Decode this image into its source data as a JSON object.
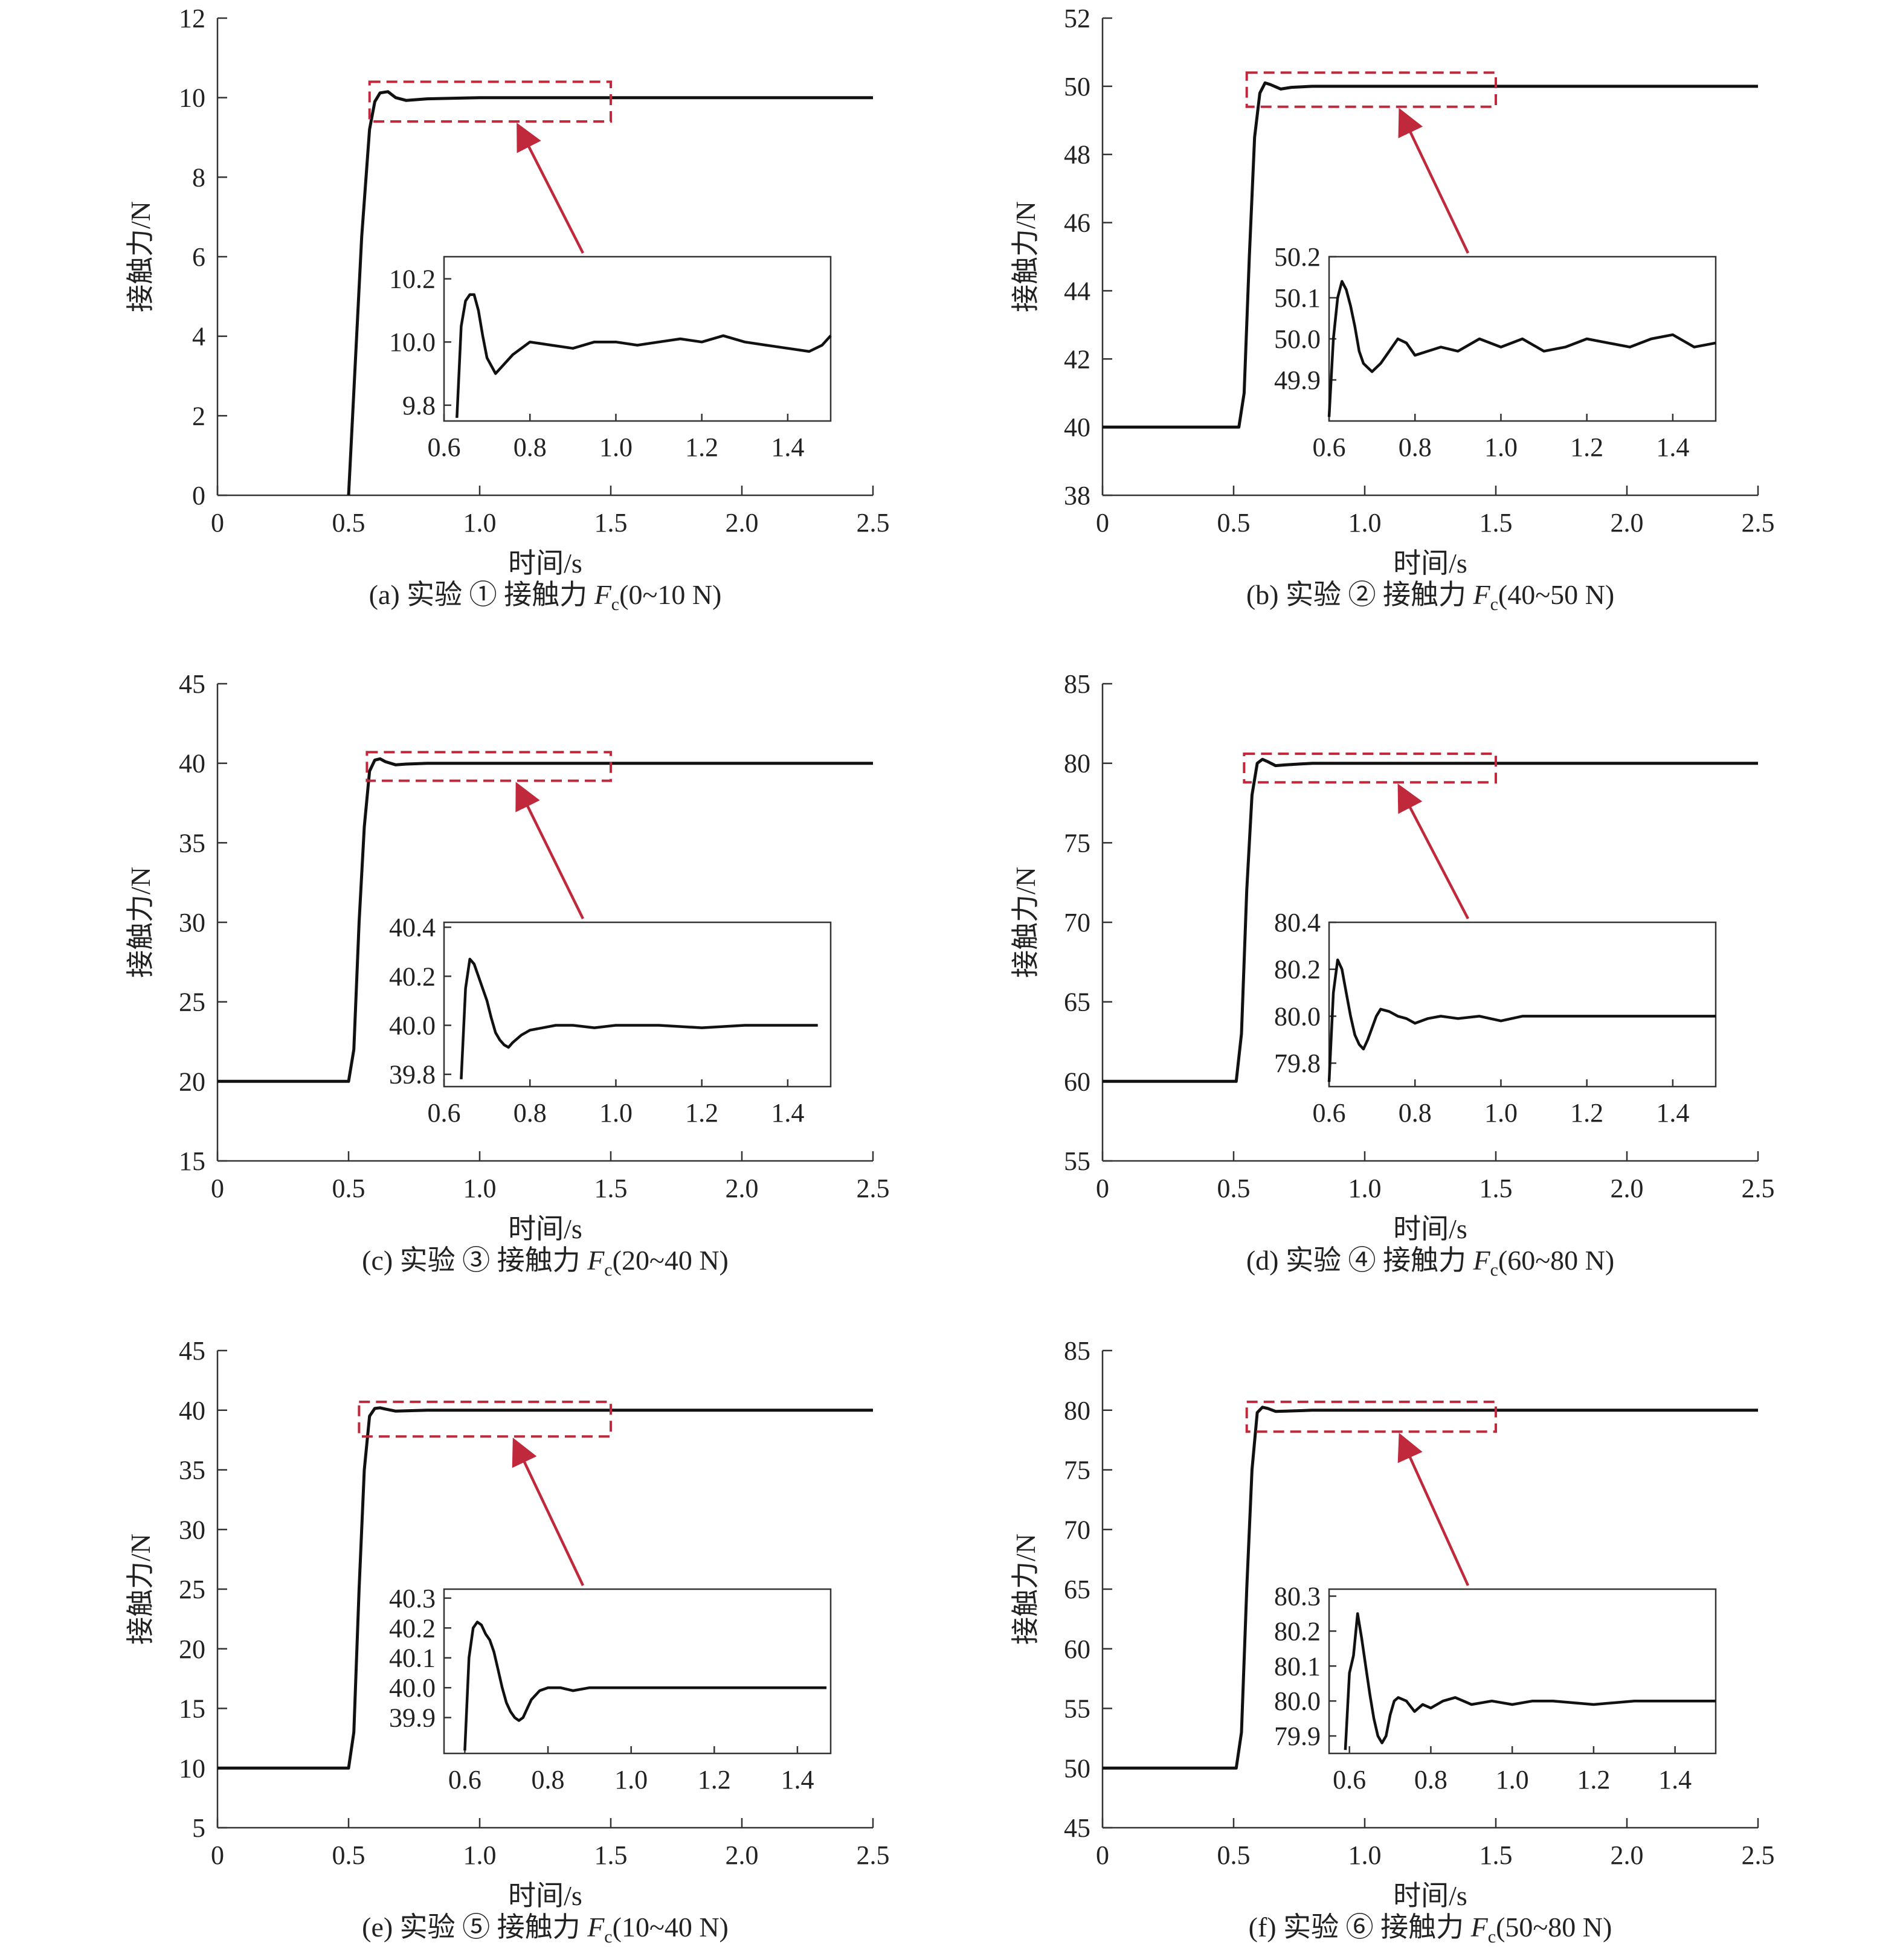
{
  "chart_data": [
    {
      "type": "line",
      "caption_prefix": "(a) 实验 ① 接触力 ",
      "caption_var": "F",
      "caption_sub": "c",
      "caption_range": "(0~10 N)",
      "xlabel": "时间/s",
      "ylabel": "接触力/N",
      "xlim": [
        0,
        2.5
      ],
      "ylim": [
        0,
        12
      ],
      "xticks": [
        "0",
        "0.5",
        "1.0",
        "1.5",
        "2.0",
        "2.5"
      ],
      "yticks": [
        "0",
        "2",
        "4",
        "6",
        "8",
        "10",
        "12"
      ],
      "series": [
        {
          "x": [
            0.5,
            0.55,
            0.58,
            0.6,
            0.62,
            0.65,
            0.68,
            0.72,
            0.8,
            1.0,
            1.5,
            2.0,
            2.5
          ],
          "y": [
            0,
            6.5,
            9.2,
            9.9,
            10.12,
            10.15,
            10.0,
            9.93,
            9.97,
            10.0,
            10.0,
            10.0,
            10.0
          ]
        }
      ],
      "highlight": {
        "x": [
          0.58,
          1.5
        ],
        "y": [
          9.4,
          10.4
        ]
      },
      "inset": {
        "xlim": [
          0.6,
          1.5
        ],
        "ylim": [
          9.75,
          10.27
        ],
        "xticks": [
          "0.6",
          "0.8",
          "1.0",
          "1.2",
          "1.4"
        ],
        "yticks": [
          "9.8",
          "10.0",
          "10.2"
        ],
        "series": {
          "x": [
            0.63,
            0.64,
            0.65,
            0.66,
            0.67,
            0.68,
            0.69,
            0.7,
            0.72,
            0.74,
            0.76,
            0.8,
            0.85,
            0.9,
            0.95,
            1.0,
            1.05,
            1.1,
            1.15,
            1.2,
            1.25,
            1.3,
            1.35,
            1.4,
            1.45,
            1.48,
            1.5
          ],
          "y": [
            9.76,
            10.05,
            10.13,
            10.15,
            10.15,
            10.1,
            10.02,
            9.95,
            9.9,
            9.93,
            9.96,
            10.0,
            9.99,
            9.98,
            10.0,
            10.0,
            9.99,
            10.0,
            10.01,
            10.0,
            10.02,
            10.0,
            9.99,
            9.98,
            9.97,
            9.99,
            10.02
          ]
        }
      }
    },
    {
      "type": "line",
      "caption_prefix": "(b) 实验 ② 接触力 ",
      "caption_var": "F",
      "caption_sub": "c",
      "caption_range": "(40~50 N)",
      "xlabel": "时间/s",
      "ylabel": "接触力/N",
      "xlim": [
        0,
        2.5
      ],
      "ylim": [
        38,
        52
      ],
      "xticks": [
        "0",
        "0.5",
        "1.0",
        "1.5",
        "2.0",
        "2.5"
      ],
      "yticks": [
        "38",
        "40",
        "42",
        "44",
        "46",
        "48",
        "50",
        "52"
      ],
      "series": [
        {
          "x": [
            0,
            0.52,
            0.54,
            0.56,
            0.58,
            0.6,
            0.62,
            0.64,
            0.68,
            0.72,
            0.8,
            1.0,
            1.5,
            2.0,
            2.5
          ],
          "y": [
            40,
            40,
            41,
            45,
            48.5,
            49.8,
            50.1,
            50.05,
            49.92,
            49.97,
            50.0,
            50.0,
            50.0,
            50.0,
            50.0
          ]
        }
      ],
      "highlight": {
        "x": [
          0.55,
          1.5
        ],
        "y": [
          49.4,
          50.4
        ]
      },
      "inset": {
        "xlim": [
          0.6,
          1.5
        ],
        "ylim": [
          49.8,
          50.2
        ],
        "xticks": [
          "0.6",
          "0.8",
          "1.0",
          "1.2",
          "1.4"
        ],
        "yticks": [
          "49.9",
          "50.0",
          "50.1",
          "50.2"
        ],
        "series": {
          "x": [
            0.6,
            0.61,
            0.62,
            0.63,
            0.64,
            0.65,
            0.66,
            0.67,
            0.68,
            0.69,
            0.7,
            0.72,
            0.74,
            0.76,
            0.78,
            0.8,
            0.83,
            0.86,
            0.9,
            0.95,
            1.0,
            1.05,
            1.1,
            1.15,
            1.2,
            1.25,
            1.3,
            1.35,
            1.4,
            1.45,
            1.5
          ],
          "y": [
            49.81,
            50.0,
            50.1,
            50.14,
            50.12,
            50.08,
            50.03,
            49.97,
            49.94,
            49.93,
            49.92,
            49.94,
            49.97,
            50.0,
            49.99,
            49.96,
            49.97,
            49.98,
            49.97,
            50.0,
            49.98,
            50.0,
            49.97,
            49.98,
            50.0,
            49.99,
            49.98,
            50.0,
            50.01,
            49.98,
            49.99
          ]
        }
      }
    },
    {
      "type": "line",
      "caption_prefix": "(c) 实验 ③ 接触力 ",
      "caption_var": "F",
      "caption_sub": "c",
      "caption_range": "(20~40 N)",
      "xlabel": "时间/s",
      "ylabel": "接触力/N",
      "xlim": [
        0,
        2.5
      ],
      "ylim": [
        15,
        45
      ],
      "xticks": [
        "0",
        "0.5",
        "1.0",
        "1.5",
        "2.0",
        "2.5"
      ],
      "yticks": [
        "15",
        "20",
        "25",
        "30",
        "35",
        "40",
        "45"
      ],
      "series": [
        {
          "x": [
            0,
            0.5,
            0.52,
            0.54,
            0.56,
            0.58,
            0.6,
            0.62,
            0.64,
            0.68,
            0.72,
            0.8,
            1.0,
            1.5,
            2.0,
            2.5
          ],
          "y": [
            20,
            20,
            22,
            30,
            36,
            39.5,
            40.2,
            40.28,
            40.1,
            39.9,
            39.95,
            40.0,
            40.0,
            40.0,
            40.0,
            40.0
          ]
        }
      ],
      "highlight": {
        "x": [
          0.57,
          1.5
        ],
        "y": [
          38.9,
          40.7
        ]
      },
      "inset": {
        "xlim": [
          0.6,
          1.5
        ],
        "ylim": [
          39.75,
          40.42
        ],
        "xticks": [
          "0.6",
          "0.8",
          "1.0",
          "1.2",
          "1.4"
        ],
        "yticks": [
          "39.8",
          "40.0",
          "40.2",
          "40.4"
        ],
        "series": {
          "x": [
            0.64,
            0.65,
            0.66,
            0.67,
            0.68,
            0.69,
            0.7,
            0.71,
            0.72,
            0.73,
            0.74,
            0.75,
            0.76,
            0.78,
            0.8,
            0.83,
            0.86,
            0.9,
            0.95,
            1.0,
            1.1,
            1.2,
            1.3,
            1.4,
            1.47
          ],
          "y": [
            39.78,
            40.15,
            40.27,
            40.25,
            40.2,
            40.15,
            40.1,
            40.03,
            39.97,
            39.94,
            39.92,
            39.91,
            39.93,
            39.96,
            39.98,
            39.99,
            40.0,
            40.0,
            39.99,
            40.0,
            40.0,
            39.99,
            40.0,
            40.0,
            40.0
          ]
        }
      }
    },
    {
      "type": "line",
      "caption_prefix": "(d) 实验 ④ 接触力 ",
      "caption_var": "F",
      "caption_sub": "c",
      "caption_range": "(60~80 N)",
      "xlabel": "时间/s",
      "ylabel": "接触力/N",
      "xlim": [
        0,
        2.5
      ],
      "ylim": [
        55,
        85
      ],
      "xticks": [
        "0",
        "0.5",
        "1.0",
        "1.5",
        "2.0",
        "2.5"
      ],
      "yticks": [
        "55",
        "60",
        "65",
        "70",
        "75",
        "80",
        "85"
      ],
      "series": [
        {
          "x": [
            0,
            0.51,
            0.53,
            0.55,
            0.57,
            0.59,
            0.61,
            0.63,
            0.66,
            0.7,
            0.8,
            1.0,
            1.5,
            2.0,
            2.5
          ],
          "y": [
            60,
            60,
            63,
            72,
            78,
            80.0,
            80.25,
            80.1,
            79.85,
            79.9,
            80.0,
            80.0,
            80.0,
            80.0,
            80.0
          ]
        }
      ],
      "highlight": {
        "x": [
          0.54,
          1.5
        ],
        "y": [
          78.8,
          80.6
        ]
      },
      "inset": {
        "xlim": [
          0.6,
          1.5
        ],
        "ylim": [
          79.7,
          80.4
        ],
        "xticks": [
          "0.6",
          "0.8",
          "1.0",
          "1.2",
          "1.4"
        ],
        "yticks": [
          "79.8",
          "80.0",
          "80.2",
          "80.4"
        ],
        "series": {
          "x": [
            0.6,
            0.61,
            0.62,
            0.63,
            0.64,
            0.65,
            0.66,
            0.67,
            0.68,
            0.69,
            0.7,
            0.71,
            0.72,
            0.74,
            0.76,
            0.78,
            0.8,
            0.83,
            0.86,
            0.9,
            0.95,
            1.0,
            1.05,
            1.1,
            1.2,
            1.3,
            1.4,
            1.5
          ],
          "y": [
            79.72,
            80.1,
            80.24,
            80.2,
            80.1,
            80.0,
            79.92,
            79.88,
            79.86,
            79.9,
            79.95,
            80.0,
            80.03,
            80.02,
            80.0,
            79.99,
            79.97,
            79.99,
            80.0,
            79.99,
            80.0,
            79.98,
            80.0,
            80.0,
            80.0,
            80.0,
            80.0,
            80.0
          ]
        }
      }
    },
    {
      "type": "line",
      "caption_prefix": "(e) 实验 ⑤ 接触力 ",
      "caption_var": "F",
      "caption_sub": "c",
      "caption_range": "(10~40 N)",
      "xlabel": "时间/s",
      "ylabel": "接触力/N",
      "xlim": [
        0,
        2.5
      ],
      "ylim": [
        5,
        45
      ],
      "xticks": [
        "0",
        "0.5",
        "1.0",
        "1.5",
        "2.0",
        "2.5"
      ],
      "yticks": [
        "5",
        "10",
        "15",
        "20",
        "25",
        "30",
        "35",
        "40",
        "45"
      ],
      "series": [
        {
          "x": [
            0,
            0.5,
            0.52,
            0.54,
            0.56,
            0.58,
            0.6,
            0.62,
            0.64,
            0.68,
            0.72,
            0.8,
            1.0,
            1.5,
            2.0,
            2.5
          ],
          "y": [
            10,
            10,
            13,
            25,
            35,
            39.5,
            40.15,
            40.2,
            40.1,
            39.92,
            39.95,
            40.0,
            40.0,
            40.0,
            40.0,
            40.0
          ]
        }
      ],
      "highlight": {
        "x": [
          0.54,
          1.5
        ],
        "y": [
          37.8,
          40.7
        ]
      },
      "inset": {
        "xlim": [
          0.55,
          1.48
        ],
        "ylim": [
          39.78,
          40.33
        ],
        "xticks": [
          "0.6",
          "0.8",
          "1.0",
          "1.2",
          "1.4"
        ],
        "yticks": [
          "39.9",
          "40.0",
          "40.1",
          "40.2",
          "40.3"
        ],
        "series": {
          "x": [
            0.6,
            0.61,
            0.62,
            0.63,
            0.64,
            0.65,
            0.66,
            0.67,
            0.68,
            0.69,
            0.7,
            0.71,
            0.72,
            0.73,
            0.74,
            0.75,
            0.76,
            0.78,
            0.8,
            0.83,
            0.86,
            0.9,
            0.95,
            1.0,
            1.1,
            1.2,
            1.3,
            1.4,
            1.47
          ],
          "y": [
            39.79,
            40.1,
            40.2,
            40.22,
            40.21,
            40.18,
            40.16,
            40.12,
            40.06,
            40.0,
            39.95,
            39.92,
            39.9,
            39.89,
            39.9,
            39.93,
            39.96,
            39.99,
            40.0,
            40.0,
            39.99,
            40.0,
            40.0,
            40.0,
            40.0,
            40.0,
            40.0,
            40.0,
            40.0
          ]
        }
      }
    },
    {
      "type": "line",
      "caption_prefix": "(f) 实验 ⑥ 接触力 ",
      "caption_var": "F",
      "caption_sub": "c",
      "caption_range": "(50~80 N)",
      "xlabel": "时间/s",
      "ylabel": "接触力/N",
      "xlim": [
        0,
        2.5
      ],
      "ylim": [
        45,
        85
      ],
      "xticks": [
        "0",
        "0.5",
        "1.0",
        "1.5",
        "2.0",
        "2.5"
      ],
      "yticks": [
        "45",
        "50",
        "55",
        "60",
        "65",
        "70",
        "75",
        "80",
        "85"
      ],
      "series": [
        {
          "x": [
            0,
            0.51,
            0.53,
            0.55,
            0.57,
            0.59,
            0.61,
            0.63,
            0.66,
            0.7,
            0.8,
            1.0,
            1.5,
            2.0,
            2.5
          ],
          "y": [
            50,
            50,
            53,
            65,
            75,
            79.8,
            80.25,
            80.15,
            79.9,
            79.92,
            80.0,
            80.0,
            80.0,
            80.0,
            80.0
          ]
        }
      ],
      "highlight": {
        "x": [
          0.55,
          1.5
        ],
        "y": [
          78.2,
          80.7
        ]
      },
      "inset": {
        "xlim": [
          0.55,
          1.5
        ],
        "ylim": [
          79.85,
          80.32
        ],
        "xticks": [
          "0.6",
          "0.8",
          "1.0",
          "1.2",
          "1.4"
        ],
        "yticks": [
          "79.9",
          "80.0",
          "80.1",
          "80.2",
          "80.3"
        ],
        "series": {
          "x": [
            0.59,
            0.6,
            0.61,
            0.62,
            0.63,
            0.64,
            0.65,
            0.66,
            0.67,
            0.68,
            0.69,
            0.7,
            0.71,
            0.72,
            0.74,
            0.76,
            0.78,
            0.8,
            0.83,
            0.86,
            0.9,
            0.95,
            1.0,
            1.05,
            1.1,
            1.2,
            1.3,
            1.4,
            1.5
          ],
          "y": [
            79.86,
            80.08,
            80.13,
            80.25,
            80.18,
            80.1,
            80.02,
            79.95,
            79.9,
            79.88,
            79.9,
            79.96,
            80.0,
            80.01,
            80.0,
            79.97,
            79.99,
            79.98,
            80.0,
            80.01,
            79.99,
            80.0,
            79.99,
            80.0,
            80.0,
            79.99,
            80.0,
            80.0,
            80.0
          ]
        }
      }
    }
  ]
}
